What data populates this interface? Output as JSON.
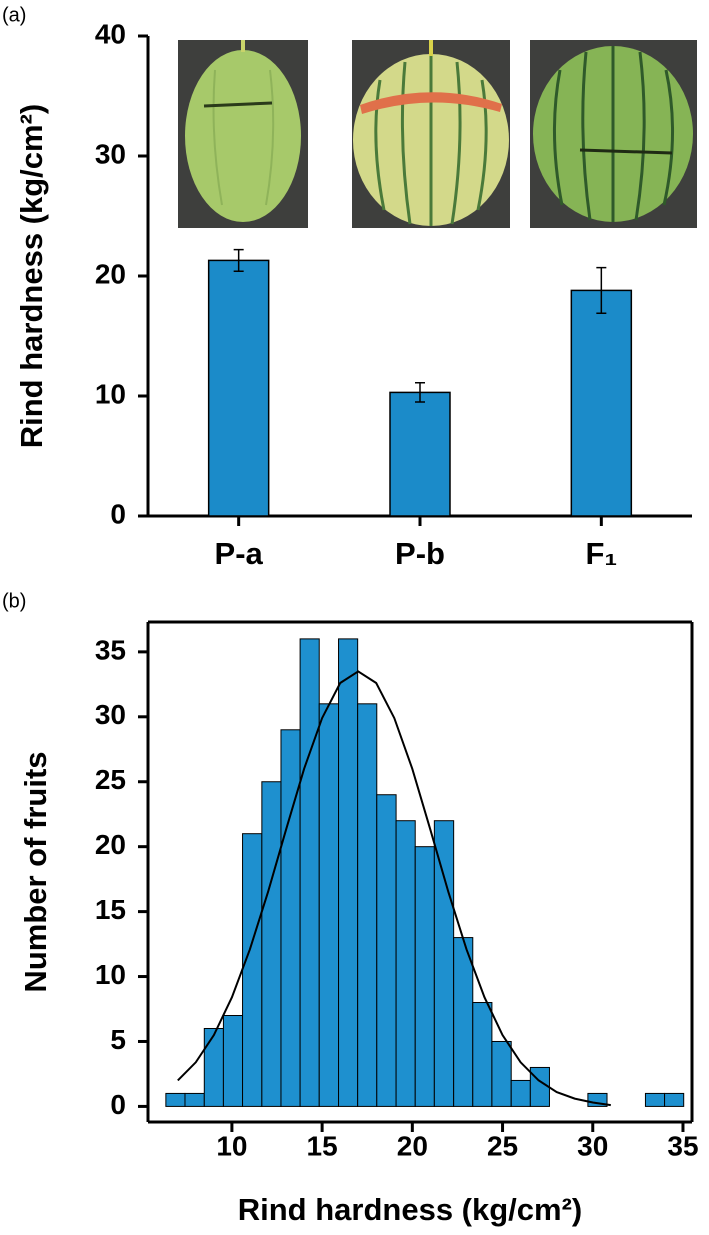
{
  "chart_data": [
    {
      "type": "bar",
      "panel_label": "(a)",
      "y_label": "Rind hardness (kg/cm²)",
      "categories": [
        "P-a",
        "P-b",
        "F₁"
      ],
      "values": [
        21.3,
        10.3,
        18.8
      ],
      "errors": [
        0.9,
        0.8,
        1.9
      ],
      "color": "#1b8bc9",
      "ylim": [
        0,
        40
      ],
      "yticks": [
        0,
        10,
        20,
        30,
        40
      ]
    },
    {
      "type": "histogram",
      "panel_label": "(b)",
      "x_label": "Rind hardness (kg/cm²)",
      "y_label": "Number of fruits",
      "bins": [
        6.34,
        7.4,
        8.47,
        9.53,
        10.59,
        11.66,
        12.72,
        13.78,
        14.84,
        15.91,
        16.97,
        18.03,
        19.1,
        20.16,
        21.22,
        22.29,
        23.35,
        24.41,
        25.48,
        26.54,
        27.6,
        28.67,
        29.73,
        30.79,
        31.85,
        32.92,
        33.98,
        35.04
      ],
      "values": [
        1,
        1,
        6,
        7,
        21,
        25,
        29,
        36,
        31,
        36,
        31,
        24,
        22,
        20,
        22,
        13,
        8,
        5,
        2,
        3,
        0,
        0,
        1,
        0,
        0,
        1,
        1
      ],
      "color": "#1e90cf",
      "curve": {
        "x": [
          7,
          8,
          9,
          10,
          11,
          12,
          13,
          14,
          15,
          16,
          17,
          18,
          19,
          20,
          21,
          22,
          23,
          24,
          25,
          26,
          27,
          28,
          29,
          30,
          31
        ],
        "values": [
          2.0,
          3.4,
          5.5,
          8.4,
          12.1,
          16.5,
          21.3,
          26.0,
          29.9,
          32.6,
          33.5,
          32.6,
          29.9,
          26.0,
          21.3,
          16.5,
          12.1,
          8.4,
          5.5,
          3.4,
          2.0,
          1.1,
          0.6,
          0.3,
          0.1
        ],
        "color": "#000000"
      },
      "xlim": [
        5.35,
        35.5
      ],
      "xticks": [
        10,
        15,
        20,
        25,
        30,
        35
      ],
      "ylim": [
        -1.2,
        37.3
      ],
      "yticks": [
        0,
        5,
        10,
        15,
        20,
        25,
        30,
        35
      ]
    }
  ]
}
